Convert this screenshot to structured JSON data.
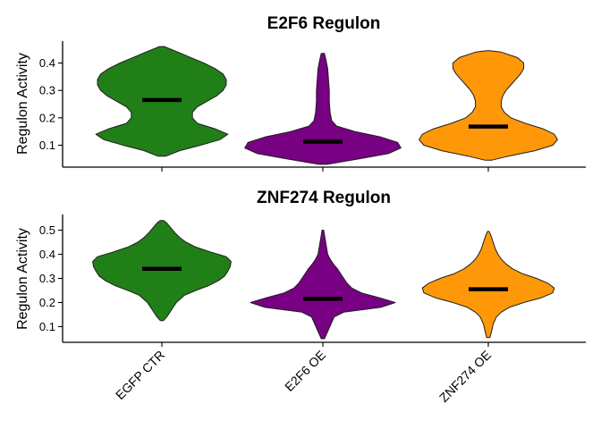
{
  "chart_data": [
    {
      "type": "violin",
      "title": "E2F6 Regulon",
      "xlabel": "",
      "ylabel": "Regulon Activity",
      "ylim": [
        0.02,
        0.48
      ],
      "yticks": [
        0.1,
        0.2,
        0.3,
        0.4
      ],
      "ytick_labels": [
        "0.1",
        "0.2",
        "0.3",
        "0.4"
      ],
      "categories": [
        "EGFP CTR",
        "E2F6 OE",
        "ZNF274 OE"
      ],
      "x_tick_labels_shown": false,
      "colors": [
        "#217f18",
        "#780082",
        "#ff9808"
      ],
      "series": [
        {
          "category": "EGFP CTR",
          "min": 0.06,
          "max": 0.46,
          "median": 0.265,
          "density": [
            [
              0.06,
              0.05
            ],
            [
              0.08,
              0.22
            ],
            [
              0.1,
              0.48
            ],
            [
              0.12,
              0.72
            ],
            [
              0.14,
              0.82
            ],
            [
              0.16,
              0.66
            ],
            [
              0.18,
              0.44
            ],
            [
              0.2,
              0.38
            ],
            [
              0.22,
              0.38
            ],
            [
              0.24,
              0.44
            ],
            [
              0.26,
              0.56
            ],
            [
              0.28,
              0.68
            ],
            [
              0.3,
              0.76
            ],
            [
              0.32,
              0.8
            ],
            [
              0.34,
              0.8
            ],
            [
              0.36,
              0.76
            ],
            [
              0.38,
              0.66
            ],
            [
              0.4,
              0.52
            ],
            [
              0.42,
              0.36
            ],
            [
              0.44,
              0.2
            ],
            [
              0.46,
              0.03
            ]
          ]
        },
        {
          "category": "E2F6 OE",
          "min": 0.03,
          "max": 0.435,
          "median": 0.113,
          "density": [
            [
              0.03,
              0.05
            ],
            [
              0.05,
              0.45
            ],
            [
              0.07,
              0.82
            ],
            [
              0.09,
              0.97
            ],
            [
              0.11,
              0.93
            ],
            [
              0.13,
              0.72
            ],
            [
              0.15,
              0.4
            ],
            [
              0.17,
              0.17
            ],
            [
              0.19,
              0.11
            ],
            [
              0.22,
              0.09
            ],
            [
              0.26,
              0.08
            ],
            [
              0.3,
              0.08
            ],
            [
              0.34,
              0.07
            ],
            [
              0.38,
              0.06
            ],
            [
              0.41,
              0.04
            ],
            [
              0.435,
              0.02
            ]
          ]
        },
        {
          "category": "ZNF274 OE",
          "min": 0.045,
          "max": 0.445,
          "median": 0.168,
          "density": [
            [
              0.045,
              0.04
            ],
            [
              0.06,
              0.25
            ],
            [
              0.08,
              0.58
            ],
            [
              0.1,
              0.8
            ],
            [
              0.12,
              0.86
            ],
            [
              0.14,
              0.82
            ],
            [
              0.16,
              0.68
            ],
            [
              0.18,
              0.46
            ],
            [
              0.2,
              0.28
            ],
            [
              0.22,
              0.2
            ],
            [
              0.24,
              0.16
            ],
            [
              0.26,
              0.16
            ],
            [
              0.28,
              0.18
            ],
            [
              0.3,
              0.22
            ],
            [
              0.32,
              0.28
            ],
            [
              0.34,
              0.34
            ],
            [
              0.36,
              0.4
            ],
            [
              0.38,
              0.44
            ],
            [
              0.4,
              0.44
            ],
            [
              0.42,
              0.36
            ],
            [
              0.44,
              0.16
            ],
            [
              0.445,
              0.02
            ]
          ]
        }
      ]
    },
    {
      "type": "violin",
      "title": "ZNF274 Regulon",
      "xlabel": "",
      "ylabel": "Regulon Activity",
      "ylim": [
        0.035,
        0.565
      ],
      "yticks": [
        0.1,
        0.2,
        0.3,
        0.4,
        0.5
      ],
      "ytick_labels": [
        "0.1",
        "0.2",
        "0.3",
        "0.4",
        "0.5"
      ],
      "categories": [
        "EGFP CTR",
        "E2F6 OE",
        "ZNF274 OE"
      ],
      "x_tick_labels_shown": true,
      "colors": [
        "#217f18",
        "#780082",
        "#ff9808"
      ],
      "series": [
        {
          "category": "EGFP CTR",
          "min": 0.125,
          "max": 0.54,
          "median": 0.34,
          "density": [
            [
              0.125,
              0.02
            ],
            [
              0.14,
              0.06
            ],
            [
              0.17,
              0.12
            ],
            [
              0.2,
              0.18
            ],
            [
              0.23,
              0.28
            ],
            [
              0.25,
              0.42
            ],
            [
              0.27,
              0.58
            ],
            [
              0.29,
              0.7
            ],
            [
              0.31,
              0.78
            ],
            [
              0.33,
              0.82
            ],
            [
              0.35,
              0.85
            ],
            [
              0.37,
              0.86
            ],
            [
              0.39,
              0.8
            ],
            [
              0.41,
              0.6
            ],
            [
              0.43,
              0.42
            ],
            [
              0.45,
              0.3
            ],
            [
              0.47,
              0.22
            ],
            [
              0.49,
              0.16
            ],
            [
              0.51,
              0.11
            ],
            [
              0.53,
              0.06
            ],
            [
              0.54,
              0.02
            ]
          ]
        },
        {
          "category": "E2F6 OE",
          "min": 0.05,
          "max": 0.5,
          "median": 0.215,
          "density": [
            [
              0.05,
              0.02
            ],
            [
              0.08,
              0.06
            ],
            [
              0.11,
              0.1
            ],
            [
              0.14,
              0.14
            ],
            [
              0.16,
              0.26
            ],
            [
              0.18,
              0.72
            ],
            [
              0.2,
              0.9
            ],
            [
              0.22,
              0.7
            ],
            [
              0.24,
              0.48
            ],
            [
              0.26,
              0.36
            ],
            [
              0.28,
              0.3
            ],
            [
              0.3,
              0.26
            ],
            [
              0.32,
              0.22
            ],
            [
              0.34,
              0.18
            ],
            [
              0.36,
              0.13
            ],
            [
              0.38,
              0.09
            ],
            [
              0.4,
              0.06
            ],
            [
              0.42,
              0.05
            ],
            [
              0.44,
              0.04
            ],
            [
              0.47,
              0.025
            ],
            [
              0.5,
              0.01
            ]
          ]
        },
        {
          "category": "ZNF274 OE",
          "min": 0.055,
          "max": 0.495,
          "median": 0.255,
          "density": [
            [
              0.055,
              0.02
            ],
            [
              0.08,
              0.04
            ],
            [
              0.11,
              0.06
            ],
            [
              0.14,
              0.1
            ],
            [
              0.16,
              0.16
            ],
            [
              0.18,
              0.26
            ],
            [
              0.2,
              0.44
            ],
            [
              0.22,
              0.66
            ],
            [
              0.24,
              0.8
            ],
            [
              0.26,
              0.82
            ],
            [
              0.28,
              0.74
            ],
            [
              0.3,
              0.6
            ],
            [
              0.32,
              0.42
            ],
            [
              0.34,
              0.3
            ],
            [
              0.36,
              0.22
            ],
            [
              0.38,
              0.16
            ],
            [
              0.4,
              0.12
            ],
            [
              0.42,
              0.09
            ],
            [
              0.44,
              0.07
            ],
            [
              0.46,
              0.05
            ],
            [
              0.48,
              0.03
            ],
            [
              0.495,
              0.01
            ]
          ]
        }
      ]
    }
  ]
}
